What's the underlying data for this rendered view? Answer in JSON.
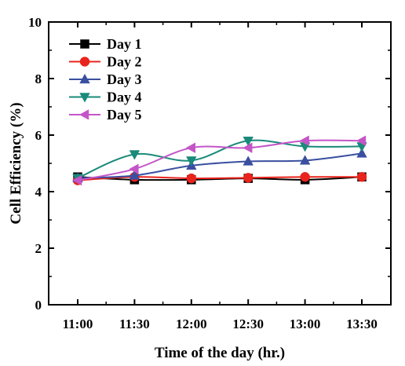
{
  "chart_data": {
    "type": "line",
    "title": "",
    "xlabel": "Time of the day (hr.)",
    "ylabel": "Cell Efficiency (%)",
    "categories": [
      "11:00",
      "11:30",
      "12:00",
      "12:30",
      "13:00",
      "13:30"
    ],
    "ylim": [
      0,
      10
    ],
    "yticks": [
      "0",
      "2",
      "4",
      "6",
      "8",
      "10"
    ],
    "grid": false,
    "legend_position": "top-left",
    "series": [
      {
        "name": "Day 1",
        "color": "#000000",
        "marker": "square",
        "values": [
          4.52,
          4.42,
          4.42,
          4.47,
          4.42,
          4.52
        ]
      },
      {
        "name": "Day 2",
        "color": "#e8241c",
        "marker": "circle",
        "values": [
          4.4,
          4.52,
          4.47,
          4.49,
          4.52,
          4.52
        ]
      },
      {
        "name": "Day 3",
        "color": "#3a4fa0",
        "marker": "triangle-up",
        "values": [
          4.48,
          4.57,
          4.92,
          5.07,
          5.1,
          5.35
        ]
      },
      {
        "name": "Day 4",
        "color": "#1a8a7a",
        "marker": "triangle-down",
        "values": [
          4.48,
          5.32,
          5.1,
          5.8,
          5.6,
          5.6
        ]
      },
      {
        "name": "Day 5",
        "color": "#c455c8",
        "marker": "triangle-left",
        "values": [
          4.4,
          4.8,
          5.55,
          5.55,
          5.8,
          5.8
        ]
      }
    ]
  }
}
